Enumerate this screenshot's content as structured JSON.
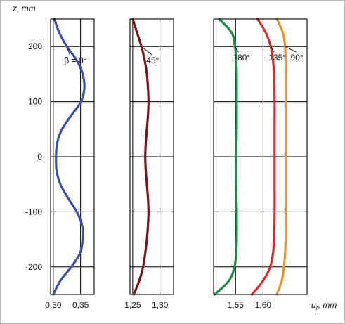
{
  "chart_data": {
    "type": "line",
    "y_axis": {
      "label": "z, mm",
      "lim": [
        -250,
        250
      ],
      "ticks": [
        -200,
        -100,
        0,
        100,
        200
      ],
      "tick_labels": [
        "-200",
        "-100",
        "0",
        "100",
        "200"
      ]
    },
    "x_axis_label": "u",
    "x_axis_label_subscript": "r",
    "x_axis_label_unit": ", mm",
    "grid": true,
    "panels": [
      {
        "xlim": [
          0.295,
          0.375
        ],
        "xticks": [
          0.3,
          0.35
        ],
        "xtick_labels": [
          "0,30",
          "0,35"
        ],
        "series": [
          {
            "label": "β = 0°",
            "color": "#3a4fb0",
            "label_at": [
              0.32,
              190
            ],
            "z": [
              -250,
              -225,
              -200,
              -175,
              -150,
              -125,
              -100,
              -75,
              -50,
              -25,
              0,
              25,
              50,
              75,
              100,
              125,
              150,
              175,
              200,
              225,
              250
            ],
            "u": [
              0.3,
              0.313,
              0.333,
              0.349,
              0.354,
              0.353,
              0.343,
              0.327,
              0.313,
              0.306,
              0.305,
              0.307,
              0.316,
              0.333,
              0.351,
              0.357,
              0.354,
              0.343,
              0.325,
              0.311,
              0.302
            ]
          }
        ]
      },
      {
        "xlim": [
          1.245,
          1.325
        ],
        "xticks": [
          1.25,
          1.3
        ],
        "xtick_labels": [
          "1,25",
          "1,30"
        ],
        "series": [
          {
            "label": "45°",
            "color": "#7a1518",
            "label_at": [
              1.275,
              190
            ],
            "z": [
              -250,
              -225,
              -200,
              -175,
              -150,
              -125,
              -100,
              -75,
              -50,
              -25,
              0,
              25,
              50,
              75,
              100,
              125,
              150,
              175,
              200,
              225,
              250
            ],
            "u": [
              1.252,
              1.262,
              1.269,
              1.273,
              1.276,
              1.278,
              1.279,
              1.278,
              1.276,
              1.274,
              1.273,
              1.274,
              1.276,
              1.278,
              1.279,
              1.278,
              1.276,
              1.272,
              1.266,
              1.258,
              1.25
            ]
          }
        ]
      },
      {
        "xlim": [
          1.51,
          1.68
        ],
        "xticks": [
          1.55,
          1.6
        ],
        "xtick_labels": [
          "1,55",
          "1,60"
        ],
        "series": [
          {
            "label": "180°",
            "color": "#1e8b45",
            "label_at": [
              1.545,
              195
            ],
            "z": [
              -250,
              -225,
              -200,
              -175,
              -150,
              -100,
              -50,
              0,
              50,
              100,
              150,
              175,
              200,
              225,
              250
            ],
            "u": [
              1.512,
              1.538,
              1.548,
              1.551,
              1.552,
              1.552,
              1.551,
              1.551,
              1.552,
              1.552,
              1.552,
              1.551,
              1.549,
              1.543,
              1.52
            ]
          },
          {
            "label": "135°",
            "color": "#d92b2b",
            "label_at": [
              1.61,
              195
            ],
            "z": [
              -250,
              -225,
              -200,
              -175,
              -150,
              -100,
              -50,
              0,
              50,
              100,
              150,
              175,
              200,
              225,
              250
            ],
            "u": [
              1.58,
              1.6,
              1.613,
              1.618,
              1.62,
              1.621,
              1.621,
              1.621,
              1.621,
              1.621,
              1.62,
              1.618,
              1.614,
              1.605,
              1.59
            ]
          },
          {
            "label": "90°",
            "color": "#f0922a",
            "label_at": [
              1.65,
              195
            ],
            "z": [
              -250,
              -225,
              -200,
              -175,
              -150,
              -100,
              -50,
              0,
              50,
              100,
              150,
              175,
              200,
              225,
              250
            ],
            "u": [
              1.625,
              1.634,
              1.638,
              1.64,
              1.641,
              1.641,
              1.641,
              1.641,
              1.641,
              1.641,
              1.641,
              1.641,
              1.64,
              1.636,
              1.625
            ]
          }
        ]
      }
    ]
  }
}
